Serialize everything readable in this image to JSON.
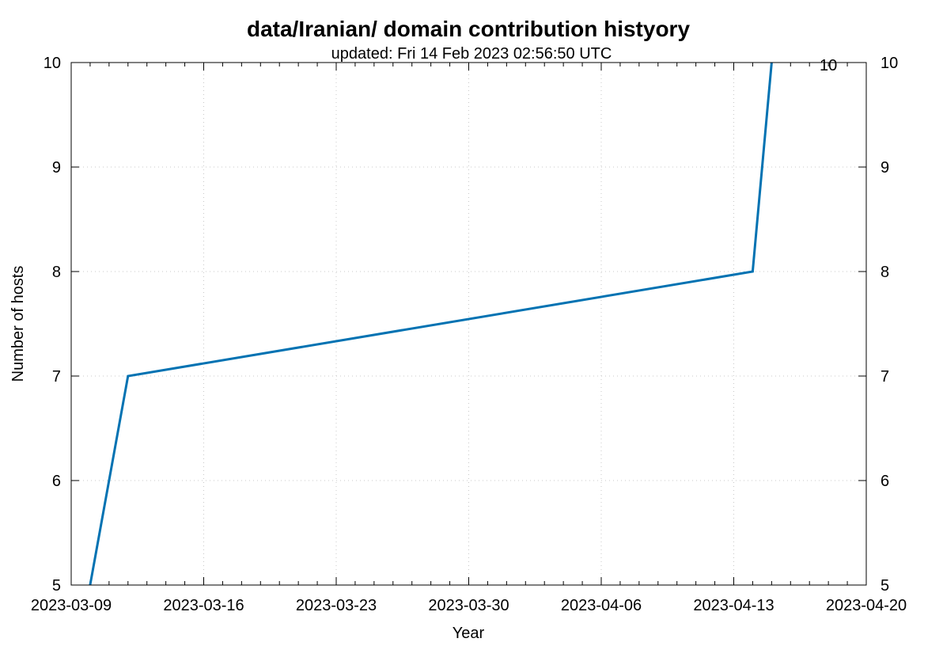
{
  "chart_data": {
    "type": "line",
    "title": "data/Iranian/ domain contribution histyory",
    "subtitle": "updated: Fri 14 Feb 2023 02:56:50 UTC",
    "xlabel": "Year",
    "ylabel": "Number of hosts",
    "xlim": [
      "2023-03-09",
      "2023-04-20"
    ],
    "ylim": [
      5,
      10
    ],
    "x_ticks": [
      "2023-03-09",
      "2023-03-16",
      "2023-03-23",
      "2023-03-30",
      "2023-04-06",
      "2023-04-13",
      "2023-04-20"
    ],
    "y_ticks": [
      5,
      6,
      7,
      8,
      9,
      10
    ],
    "grid": true,
    "series_color": "#0072b2",
    "series": [
      {
        "x": [
          "2023-03-10",
          "2023-03-12",
          "2023-04-14",
          "2023-04-15"
        ],
        "values": [
          5,
          7,
          8,
          10
        ]
      }
    ],
    "annotations": [
      {
        "text": "10",
        "x": "2023-04-18",
        "y": 10
      }
    ]
  }
}
